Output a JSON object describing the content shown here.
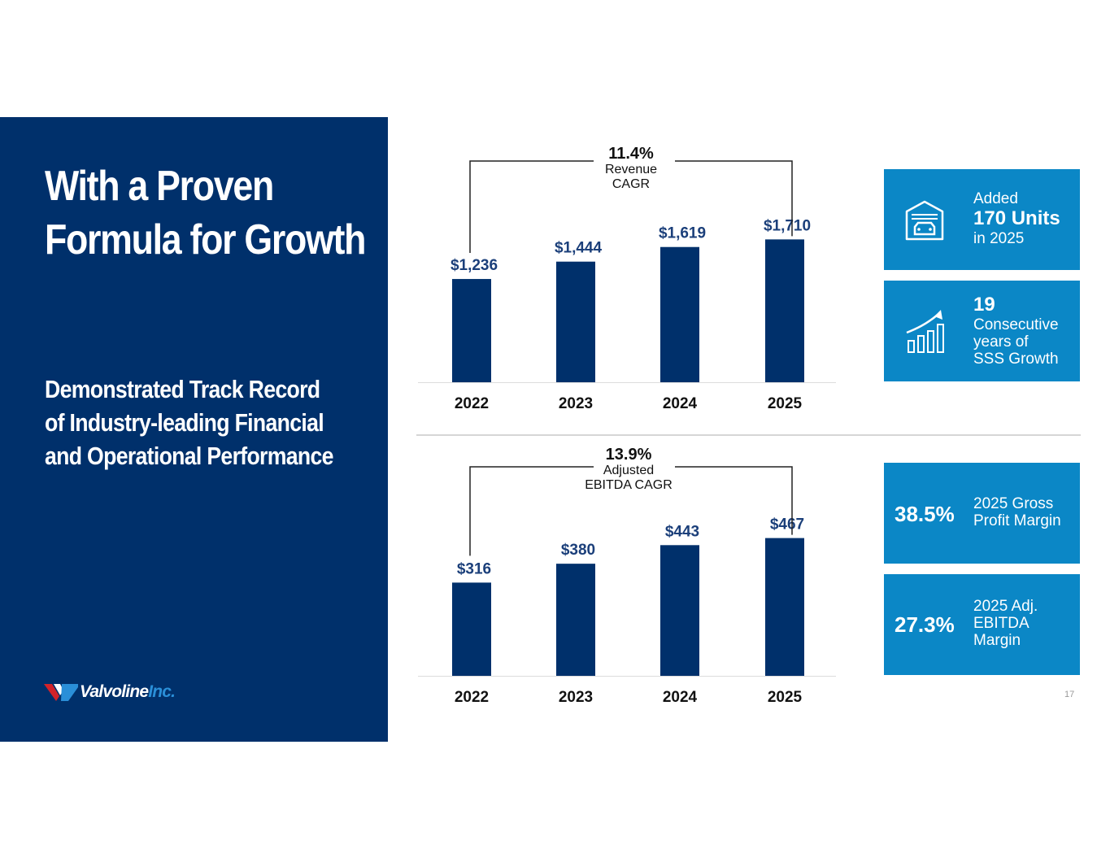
{
  "slide": {
    "title_line1": "With a Proven",
    "title_line2": "Formula for Growth",
    "subtitle_line1": "Demonstrated Track Record",
    "subtitle_line2": "of Industry-leading Financial",
    "subtitle_line3": "and Operational Performance",
    "logo_text": "Valvoline",
    "logo_suffix": "Inc.",
    "page_number": "17"
  },
  "colors": {
    "navy": "#00306b",
    "bar": "#00306b",
    "value_label": "#1b3f7a",
    "kpi_blue": "#0b87c6",
    "logo_red": "#d2232a",
    "logo_blue": "#2a8fd8"
  },
  "chart_data": [
    {
      "type": "bar",
      "title": "Revenue",
      "categories": [
        "2022",
        "2023",
        "2024",
        "2025"
      ],
      "values": [
        1236,
        1444,
        1619,
        1710
      ],
      "value_labels": [
        "$1,236",
        "$1,444",
        "$1,619",
        "$1,710"
      ],
      "ylim": [
        0,
        1850
      ],
      "cagr_pct": "11.4%",
      "cagr_label_line1": "Revenue",
      "cagr_label_line2": "CAGR",
      "grid": false
    },
    {
      "type": "bar",
      "title": "Adjusted EBITDA",
      "categories": [
        "2022",
        "2023",
        "2024",
        "2025"
      ],
      "values": [
        316,
        380,
        443,
        467
      ],
      "value_labels": [
        "$316",
        "$380",
        "$443",
        "$467"
      ],
      "ylim": [
        0,
        510
      ],
      "cagr_pct": "13.9%",
      "cagr_label_line1": "Adjusted",
      "cagr_label_line2": "EBITDA CAGR",
      "grid": false
    }
  ],
  "kpis": {
    "units": {
      "line1": "Added",
      "line2": "170 Units",
      "line3": "in 2025",
      "icon": "garage-car-icon"
    },
    "sss": {
      "line1": "19",
      "line2": "Consecutive",
      "line3": "years of",
      "line4": "SSS Growth",
      "icon": "growth-chart-icon"
    },
    "gross_margin": {
      "value": "38.5%",
      "line1": "2025 Gross",
      "line2": "Profit Margin"
    },
    "ebitda_margin": {
      "value": "27.3%",
      "line1": "2025 Adj.",
      "line2": "EBITDA",
      "line3": "Margin"
    }
  }
}
